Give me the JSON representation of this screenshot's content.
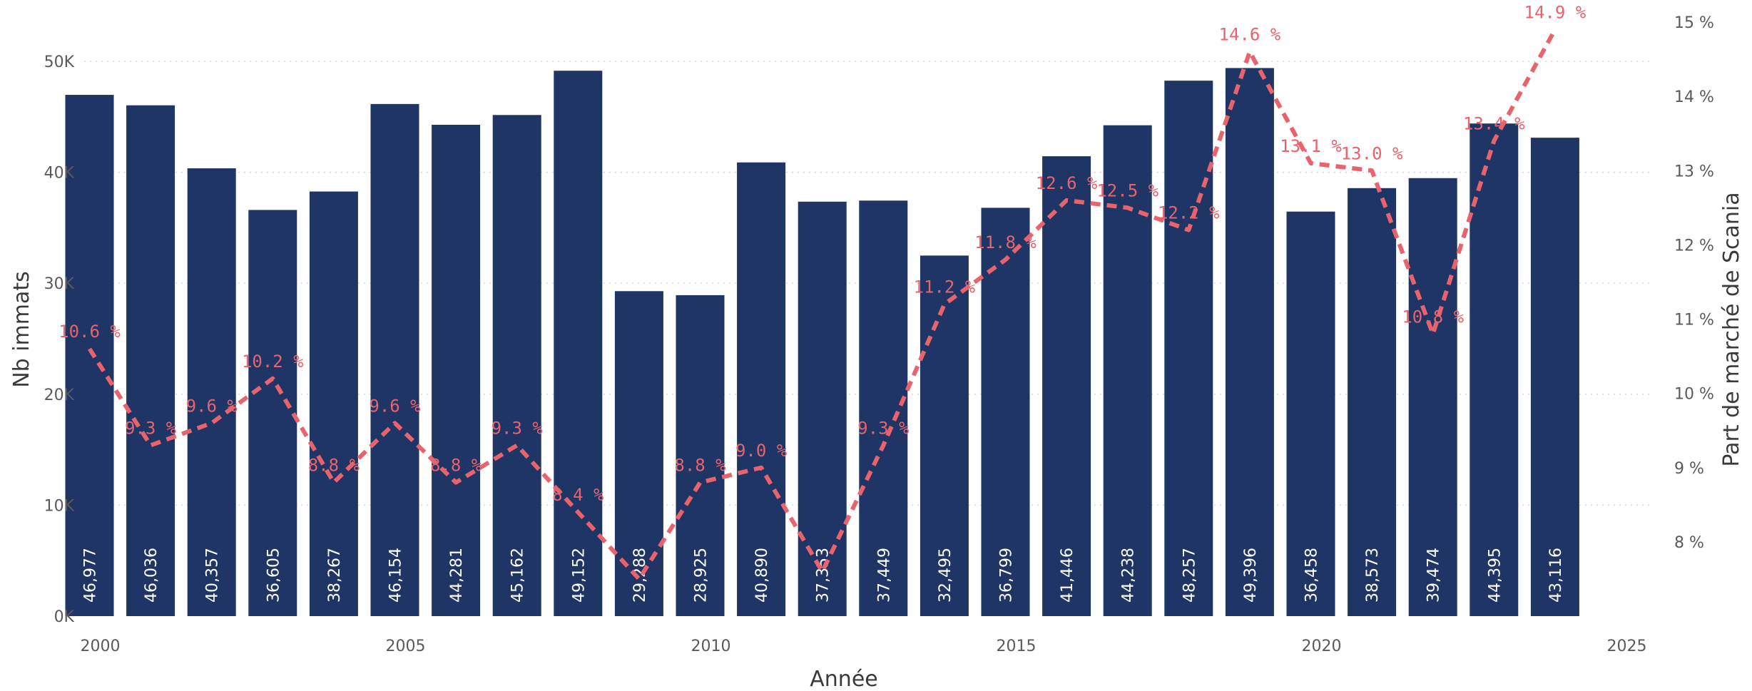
{
  "chart_data": {
    "type": "bar",
    "xlabel": "Année",
    "ylabel": "Nb immats",
    "y2label": "Part de marché de Scania",
    "categories": [
      2000,
      2001,
      2002,
      2003,
      2004,
      2005,
      2006,
      2007,
      2008,
      2009,
      2010,
      2011,
      2012,
      2013,
      2014,
      2015,
      2016,
      2017,
      2018,
      2019,
      2020,
      2021,
      2022,
      2023,
      2024
    ],
    "xlim": [
      2000,
      2025
    ],
    "x_ticks": [
      2000,
      2005,
      2010,
      2015,
      2020,
      2025
    ],
    "ylim": [
      0,
      50000
    ],
    "y_ticks": [
      {
        "v": 0,
        "label": "0K"
      },
      {
        "v": 10000,
        "label": "10K"
      },
      {
        "v": 20000,
        "label": "20K"
      },
      {
        "v": 30000,
        "label": "30K"
      },
      {
        "v": 40000,
        "label": "40K"
      },
      {
        "v": 50000,
        "label": "50K"
      }
    ],
    "y2lim": [
      7,
      15
    ],
    "y2_ticks": [
      {
        "v": 8,
        "label": "8 %"
      },
      {
        "v": 9,
        "label": "9 %"
      },
      {
        "v": 10,
        "label": "10 %"
      },
      {
        "v": 11,
        "label": "11 %"
      },
      {
        "v": 12,
        "label": "12 %"
      },
      {
        "v": 13,
        "label": "13 %"
      },
      {
        "v": 14,
        "label": "14 %"
      },
      {
        "v": 15,
        "label": "15 %"
      }
    ],
    "grid": true,
    "series": [
      {
        "type": "bar",
        "axis": "left",
        "color": "#1f3566",
        "values": [
          46977,
          46036,
          40357,
          36605,
          38267,
          46154,
          44281,
          45162,
          49152,
          29288,
          28925,
          40890,
          37353,
          37449,
          32495,
          36799,
          41446,
          44238,
          48257,
          49396,
          36458,
          38573,
          39474,
          44395,
          43116
        ],
        "labels": [
          "46,977",
          "46,036",
          "40,357",
          "36,605",
          "38,267",
          "46,154",
          "44,281",
          "45,162",
          "49,152",
          "29,288",
          "28,925",
          "40,890",
          "37,353",
          "37,449",
          "32,495",
          "36,799",
          "41,446",
          "44,238",
          "48,257",
          "49,396",
          "36,458",
          "38,573",
          "39,474",
          "44,395",
          "43,116"
        ]
      },
      {
        "type": "line",
        "axis": "right",
        "style": "dashed",
        "color": "#e8636b",
        "values": [
          10.6,
          9.3,
          9.6,
          10.2,
          8.8,
          9.6,
          8.8,
          9.3,
          8.4,
          7.5,
          8.8,
          9.0,
          7.6,
          9.3,
          11.2,
          11.8,
          12.6,
          12.5,
          12.2,
          14.6,
          13.1,
          13.0,
          10.8,
          13.4,
          14.9
        ],
        "labels": [
          "10.6 %",
          "9.3 %",
          "9.6 %",
          "10.2 %",
          "8.8 %",
          "9.6 %",
          "8.8 %",
          "9.3 %",
          "8.4 %",
          "",
          "8.8 %",
          "9.0 %",
          "",
          "9.3 %",
          "11.2 %",
          "11.8 %",
          "12.6 %",
          "12.5 %",
          "12.2 %",
          "14.6 %",
          "13.1 %",
          "13.0 %",
          "10.8 %",
          "13.4 %",
          "14.9 %"
        ]
      }
    ]
  }
}
